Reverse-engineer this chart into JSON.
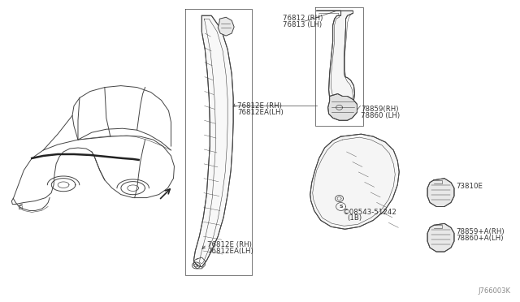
{
  "background_color": "#ffffff",
  "line_color": "#444444",
  "text_color": "#333333",
  "diagram_id": "J766003K",
  "label_76812": [
    "76812 (RH)",
    "76813 (LH)"
  ],
  "label_76812E_mid": [
    "76812E (RH)",
    "76812EA(LH)"
  ],
  "label_76812E_bot": [
    "76812E (RH)",
    "76812EA(LH)"
  ],
  "label_78859": [
    "78859(RH)",
    "78860 (LH)"
  ],
  "label_73810E": [
    "73810E"
  ],
  "label_s08543": [
    "©​08543-51242",
    "(1B)"
  ],
  "label_78859a": [
    "78859+A(RH)",
    "78860+A(LH)"
  ]
}
